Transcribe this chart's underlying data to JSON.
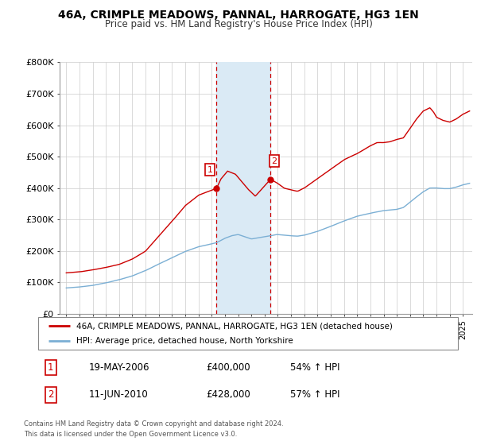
{
  "title": "46A, CRIMPLE MEADOWS, PANNAL, HARROGATE, HG3 1EN",
  "subtitle": "Price paid vs. HM Land Registry's House Price Index (HPI)",
  "legend_line1": "46A, CRIMPLE MEADOWS, PANNAL, HARROGATE, HG3 1EN (detached house)",
  "legend_line2": "HPI: Average price, detached house, North Yorkshire",
  "footer1": "Contains HM Land Registry data © Crown copyright and database right 2024.",
  "footer2": "This data is licensed under the Open Government Licence v3.0.",
  "transaction1_date": "19-MAY-2006",
  "transaction1_price": "£400,000",
  "transaction1_hpi": "54% ↑ HPI",
  "transaction2_date": "11-JUN-2010",
  "transaction2_price": "£428,000",
  "transaction2_hpi": "57% ↑ HPI",
  "red_color": "#cc0000",
  "blue_color": "#7bafd4",
  "highlight_color": "#daeaf5",
  "ylim": [
    0,
    800000
  ],
  "yticks": [
    0,
    100000,
    200000,
    300000,
    400000,
    500000,
    600000,
    700000,
    800000
  ],
  "ytick_labels": [
    "£0",
    "£100K",
    "£200K",
    "£300K",
    "£400K",
    "£500K",
    "£600K",
    "£700K",
    "£800K"
  ],
  "transaction1_x": 2006.37,
  "transaction2_x": 2010.44,
  "transaction1_y": 400000,
  "transaction2_y": 428000,
  "shade_x1": 2006.37,
  "shade_x2": 2010.44,
  "xmin": 1994.5,
  "xmax": 2025.7
}
